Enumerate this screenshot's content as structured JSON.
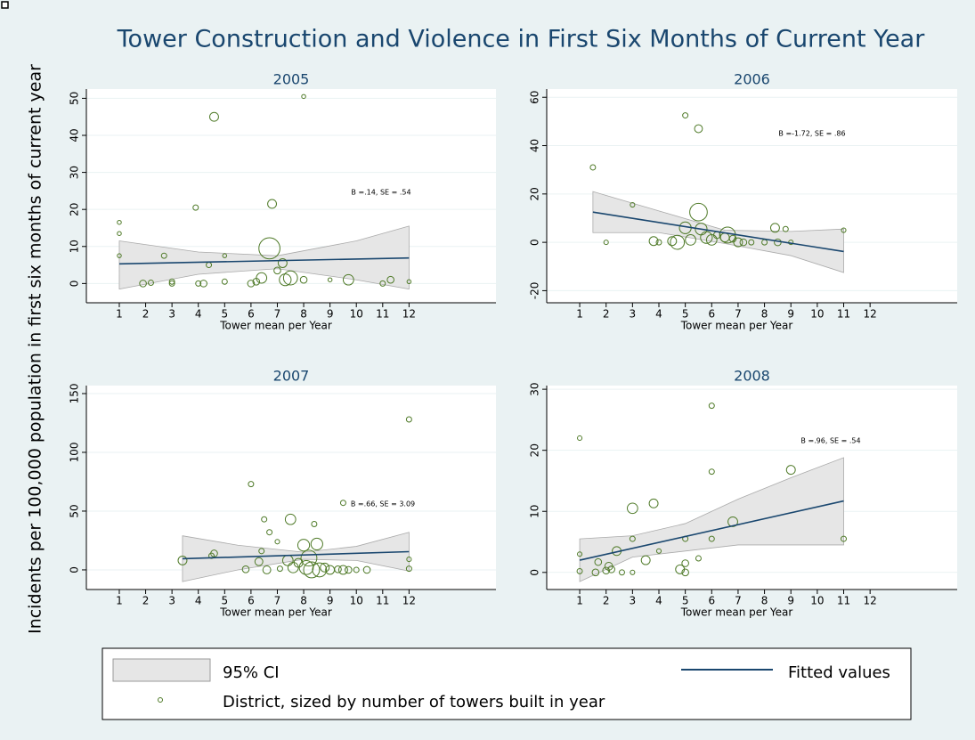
{
  "title": "Tower Construction and Violence in First Six Months of Current Year",
  "y_label": "Incidents per 100,000 population in first six months of current year",
  "legend": {
    "ci": "95% CI",
    "fit": "Fitted values",
    "points": "District, sized by number of towers built in year"
  },
  "chart_data": [
    {
      "type": "scatter",
      "title": "2005",
      "x_label": "Tower mean per Year",
      "annotation": "B =.14, SE = .54",
      "colors": {
        "points": "#4f7a28",
        "fit": "#1a476f",
        "ci": "#e6e6e6"
      },
      "grid": true,
      "xlim": [
        -0.25,
        15.3
      ],
      "ylim": [
        -5.2,
        52.5
      ],
      "xticks": [
        1,
        2,
        3,
        4,
        5,
        6,
        7,
        8,
        9,
        10,
        11,
        12
      ],
      "yticks": [
        0,
        10,
        20,
        30,
        40,
        50
      ],
      "x": [
        1,
        1,
        1,
        1.9,
        2.2,
        2.7,
        3,
        3,
        3.9,
        4,
        4.2,
        4.4,
        4.6,
        5,
        5,
        6,
        6.2,
        6.4,
        6.7,
        6.8,
        7,
        7.2,
        7.3,
        7.5,
        8,
        8,
        9,
        9.7,
        11,
        11.3,
        12
      ],
      "y": [
        16.5,
        13.5,
        7.5,
        0,
        0.2,
        7.5,
        0.5,
        0,
        20.5,
        0,
        0,
        5,
        45,
        0.5,
        7.5,
        0,
        0.5,
        1.5,
        9.5,
        21.5,
        3.5,
        5.5,
        1,
        1.5,
        50.5,
        1,
        1,
        1,
        0,
        1,
        0.5
      ],
      "size": [
        0.2,
        0.2,
        0.2,
        1,
        0.5,
        0.5,
        0.5,
        0.5,
        0.5,
        0.5,
        1,
        0.5,
        2,
        0.5,
        0.2,
        1,
        1,
        3,
        15,
        2,
        1,
        2,
        4,
        6,
        0.2,
        1,
        0.2,
        3,
        0.5,
        1,
        0.2
      ],
      "fit": {
        "x": [
          1,
          12
        ],
        "y": [
          5.3,
          6.9
        ]
      },
      "ci": {
        "x": [
          1,
          4,
          7,
          10,
          12
        ],
        "upper": [
          11.5,
          8.5,
          7.5,
          11.5,
          15.5
        ],
        "lower": [
          -1.5,
          2.5,
          4,
          1,
          -1.5
        ]
      }
    },
    {
      "type": "scatter",
      "title": "2006",
      "x_label": "Tower mean per Year",
      "annotation": "B =-1.72, SE = .86",
      "colors": {
        "points": "#4f7a28",
        "fit": "#1a476f",
        "ci": "#e6e6e6"
      },
      "grid": true,
      "xlim": [
        -0.25,
        15.3
      ],
      "ylim": [
        -25,
        63.4
      ],
      "xticks": [
        1,
        2,
        3,
        4,
        5,
        6,
        7,
        8,
        9,
        10,
        11,
        12
      ],
      "yticks": [
        -20,
        0,
        20,
        40,
        60
      ],
      "x": [
        1.5,
        2,
        3,
        3.8,
        4,
        4.5,
        4.7,
        5,
        5,
        5.2,
        5.5,
        5.5,
        5.6,
        5.8,
        6,
        6.2,
        6.5,
        6.6,
        6.8,
        7,
        7.2,
        7.5,
        8,
        8.4,
        8.5,
        8.8,
        9,
        11
      ],
      "y": [
        31,
        0,
        15.5,
        0.5,
        0,
        0.5,
        0,
        52.5,
        6,
        1,
        12.5,
        47,
        5.5,
        2,
        1,
        3,
        2,
        3,
        1.5,
        0,
        0,
        0,
        0,
        6,
        0,
        5.5,
        0,
        5
      ],
      "size": [
        0.5,
        0.3,
        0.3,
        2,
        0.5,
        2,
        6,
        0.5,
        4,
        3,
        10,
        1.5,
        4,
        4,
        3,
        1,
        2,
        8,
        1,
        2,
        1,
        0.5,
        0.5,
        2,
        1,
        0.5,
        0.3,
        0.3
      ],
      "fit": {
        "x": [
          1.5,
          11
        ],
        "y": [
          12.5,
          -3.8
        ]
      },
      "ci": {
        "x": [
          1.5,
          4,
          6.5,
          9,
          11
        ],
        "upper": [
          21,
          13,
          5,
          4.5,
          5.5
        ],
        "lower": [
          4,
          4,
          -0.5,
          -5.5,
          -12.5
        ]
      }
    },
    {
      "type": "scatter",
      "title": "2007",
      "x_label": "Tower mean per Year",
      "annotation": "B =.66, SE = 3.09",
      "colors": {
        "points": "#4f7a28",
        "fit": "#1a476f",
        "ci": "#e6e6e6"
      },
      "grid": true,
      "xlim": [
        -0.25,
        15.3
      ],
      "ylim": [
        -16.7,
        156.8
      ],
      "xticks": [
        1,
        2,
        3,
        4,
        5,
        6,
        7,
        8,
        9,
        10,
        11,
        12
      ],
      "yticks": [
        0,
        50,
        100,
        150
      ],
      "x": [
        3.4,
        4.5,
        4.6,
        5.8,
        6,
        6.3,
        6.4,
        6.5,
        6.6,
        6.7,
        7,
        7.1,
        7.4,
        7.5,
        7.6,
        7.8,
        8,
        8.1,
        8.2,
        8.3,
        8.4,
        8.5,
        8.6,
        8.8,
        9,
        9.3,
        9.5,
        9.5,
        9.7,
        10,
        10.4,
        12,
        12,
        12
      ],
      "y": [
        8,
        12,
        14,
        0.5,
        73,
        7,
        16,
        43,
        0,
        32,
        24,
        1,
        8,
        43,
        2,
        6,
        21,
        2,
        10,
        0,
        39,
        22,
        0,
        2,
        0,
        0.5,
        0,
        57,
        0,
        0,
        0,
        128,
        9,
        1
      ],
      "size": [
        2,
        0.5,
        1,
        1,
        0.5,
        1.5,
        0.5,
        0.5,
        1.5,
        0.5,
        0.3,
        0.5,
        3,
        3,
        3,
        2,
        4,
        6,
        8,
        8,
        0.5,
        4,
        6,
        2,
        2,
        1,
        2,
        0.5,
        1,
        0.5,
        1,
        0.5,
        0.3,
        0.5
      ],
      "fit": {
        "x": [
          3.4,
          12
        ],
        "y": [
          9.5,
          15.5
        ]
      },
      "ci": {
        "x": [
          3.4,
          5.5,
          8,
          10,
          12
        ],
        "upper": [
          29,
          21,
          15,
          20,
          32
        ],
        "lower": [
          -10,
          0,
          9,
          8,
          -1
        ]
      }
    },
    {
      "type": "scatter",
      "title": "2008",
      "x_label": "Tower mean per Year",
      "annotation": "B =.96, SE = .54",
      "colors": {
        "points": "#4f7a28",
        "fit": "#1a476f",
        "ci": "#e6e6e6"
      },
      "grid": true,
      "xlim": [
        -0.25,
        15.3
      ],
      "ylim": [
        -2.8,
        30.6
      ],
      "xticks": [
        1,
        2,
        3,
        4,
        5,
        6,
        7,
        8,
        9,
        10,
        11,
        12
      ],
      "yticks": [
        0,
        10,
        20,
        30
      ],
      "x": [
        1,
        1,
        1,
        1.6,
        1.7,
        2,
        2.1,
        2.2,
        2.4,
        2.6,
        3,
        3,
        3,
        3.5,
        3.8,
        4,
        4.8,
        5,
        5,
        5,
        5.5,
        6,
        6,
        6,
        6.8,
        9,
        11
      ],
      "y": [
        22,
        3,
        0.2,
        0,
        1.7,
        0.3,
        1,
        0.5,
        3.5,
        0,
        10.5,
        5.5,
        0,
        2,
        11.3,
        3.5,
        0.5,
        0,
        1.5,
        5.5,
        2.3,
        27.3,
        16.5,
        5.5,
        8.3,
        16.8,
        5.5
      ],
      "size": [
        0.3,
        0.3,
        0.5,
        1,
        1,
        1,
        1.5,
        1,
        2,
        0.5,
        3,
        0.5,
        0.3,
        2,
        2,
        0.3,
        2,
        1,
        1,
        0.5,
        0.5,
        0.5,
        0.5,
        0.5,
        2.5,
        2,
        0.5
      ],
      "fit": {
        "x": [
          1,
          11
        ],
        "y": [
          2,
          11.7
        ]
      },
      "ci": {
        "x": [
          1,
          3,
          5,
          7,
          9,
          11
        ],
        "upper": [
          5.5,
          6,
          8,
          12,
          15.5,
          18.8
        ],
        "lower": [
          -1.5,
          2.5,
          3.5,
          4.5,
          4.5,
          4.5
        ]
      }
    }
  ]
}
